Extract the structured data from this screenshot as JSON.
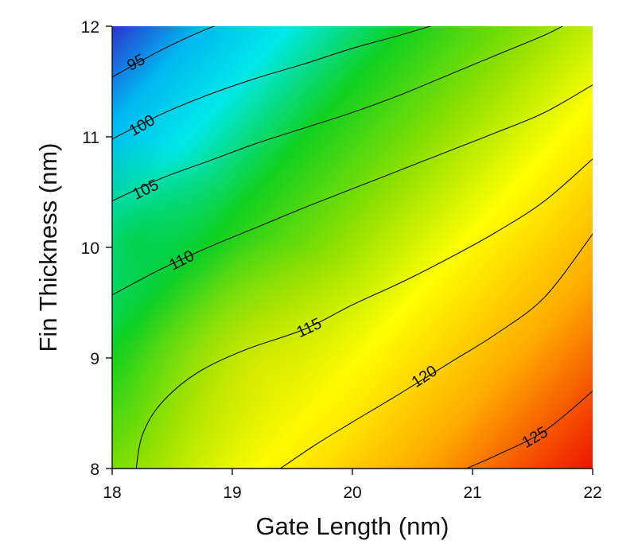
{
  "chart_data": {
    "type": "heatmap",
    "subtype": "filled-contour",
    "title": "",
    "xlabel": "Gate Length (nm)",
    "ylabel": "Fin Thickness (nm)",
    "xlim": [
      18,
      22
    ],
    "ylim": [
      8,
      12
    ],
    "x_ticks": [
      18,
      19,
      20,
      21,
      22
    ],
    "y_ticks": [
      8,
      9,
      10,
      11,
      12
    ],
    "colormap": "rainbow",
    "color_low": "#2233cc",
    "color_high": "#ee1100",
    "grid": false,
    "legend": "none",
    "contours": [
      {
        "level": 95,
        "label": "95",
        "points": [
          [
            18.0,
            11.54
          ],
          [
            18.4,
            11.78
          ],
          [
            18.8,
            11.98
          ],
          [
            19.0,
            12.05
          ]
        ]
      },
      {
        "level": 100,
        "label": "100",
        "points": [
          [
            18.0,
            10.98
          ],
          [
            18.4,
            11.2
          ],
          [
            18.8,
            11.38
          ],
          [
            19.2,
            11.53
          ],
          [
            19.6,
            11.66
          ],
          [
            20.0,
            11.8
          ],
          [
            20.4,
            11.92
          ],
          [
            20.8,
            12.05
          ]
        ]
      },
      {
        "level": 105,
        "label": "105",
        "points": [
          [
            18.0,
            10.42
          ],
          [
            18.4,
            10.62
          ],
          [
            18.8,
            10.78
          ],
          [
            19.2,
            10.94
          ],
          [
            19.6,
            11.08
          ],
          [
            20.0,
            11.22
          ],
          [
            20.4,
            11.38
          ],
          [
            20.8,
            11.56
          ],
          [
            21.2,
            11.74
          ],
          [
            21.6,
            11.92
          ],
          [
            21.8,
            12.03
          ]
        ]
      },
      {
        "level": 110,
        "label": "110",
        "points": [
          [
            18.0,
            9.57
          ],
          [
            18.4,
            9.8
          ],
          [
            18.8,
            10.0
          ],
          [
            19.2,
            10.18
          ],
          [
            19.6,
            10.36
          ],
          [
            20.0,
            10.53
          ],
          [
            20.4,
            10.7
          ],
          [
            20.8,
            10.87
          ],
          [
            21.2,
            11.04
          ],
          [
            21.6,
            11.22
          ],
          [
            22.0,
            11.47
          ]
        ]
      },
      {
        "level": 115,
        "label": "115",
        "points": [
          [
            18.2,
            8.0
          ],
          [
            18.25,
            8.3
          ],
          [
            18.4,
            8.58
          ],
          [
            18.7,
            8.86
          ],
          [
            19.1,
            9.07
          ],
          [
            19.6,
            9.26
          ],
          [
            20.0,
            9.48
          ],
          [
            20.4,
            9.68
          ],
          [
            20.8,
            9.9
          ],
          [
            21.2,
            10.14
          ],
          [
            21.6,
            10.42
          ],
          [
            22.0,
            10.8
          ]
        ]
      },
      {
        "level": 120,
        "label": "120",
        "points": [
          [
            19.4,
            8.0
          ],
          [
            19.7,
            8.22
          ],
          [
            20.0,
            8.42
          ],
          [
            20.4,
            8.68
          ],
          [
            20.8,
            8.95
          ],
          [
            21.2,
            9.22
          ],
          [
            21.6,
            9.55
          ],
          [
            22.0,
            10.12
          ]
        ]
      },
      {
        "level": 125,
        "label": "125",
        "points": [
          [
            20.95,
            8.0
          ],
          [
            21.2,
            8.12
          ],
          [
            21.6,
            8.34
          ],
          [
            22.0,
            8.7
          ]
        ]
      }
    ],
    "contour_labels": [
      {
        "text": "95",
        "x": 18.2,
        "y": 11.67,
        "angle": -28
      },
      {
        "text": "100",
        "x": 18.25,
        "y": 11.1,
        "angle": -30
      },
      {
        "text": "105",
        "x": 18.28,
        "y": 10.52,
        "angle": -26
      },
      {
        "text": "110",
        "x": 18.58,
        "y": 9.88,
        "angle": -27
      },
      {
        "text": "115",
        "x": 19.64,
        "y": 9.27,
        "angle": -25
      },
      {
        "text": "120",
        "x": 20.6,
        "y": 8.83,
        "angle": -33
      },
      {
        "text": "125",
        "x": 21.52,
        "y": 8.28,
        "angle": -30
      }
    ]
  }
}
